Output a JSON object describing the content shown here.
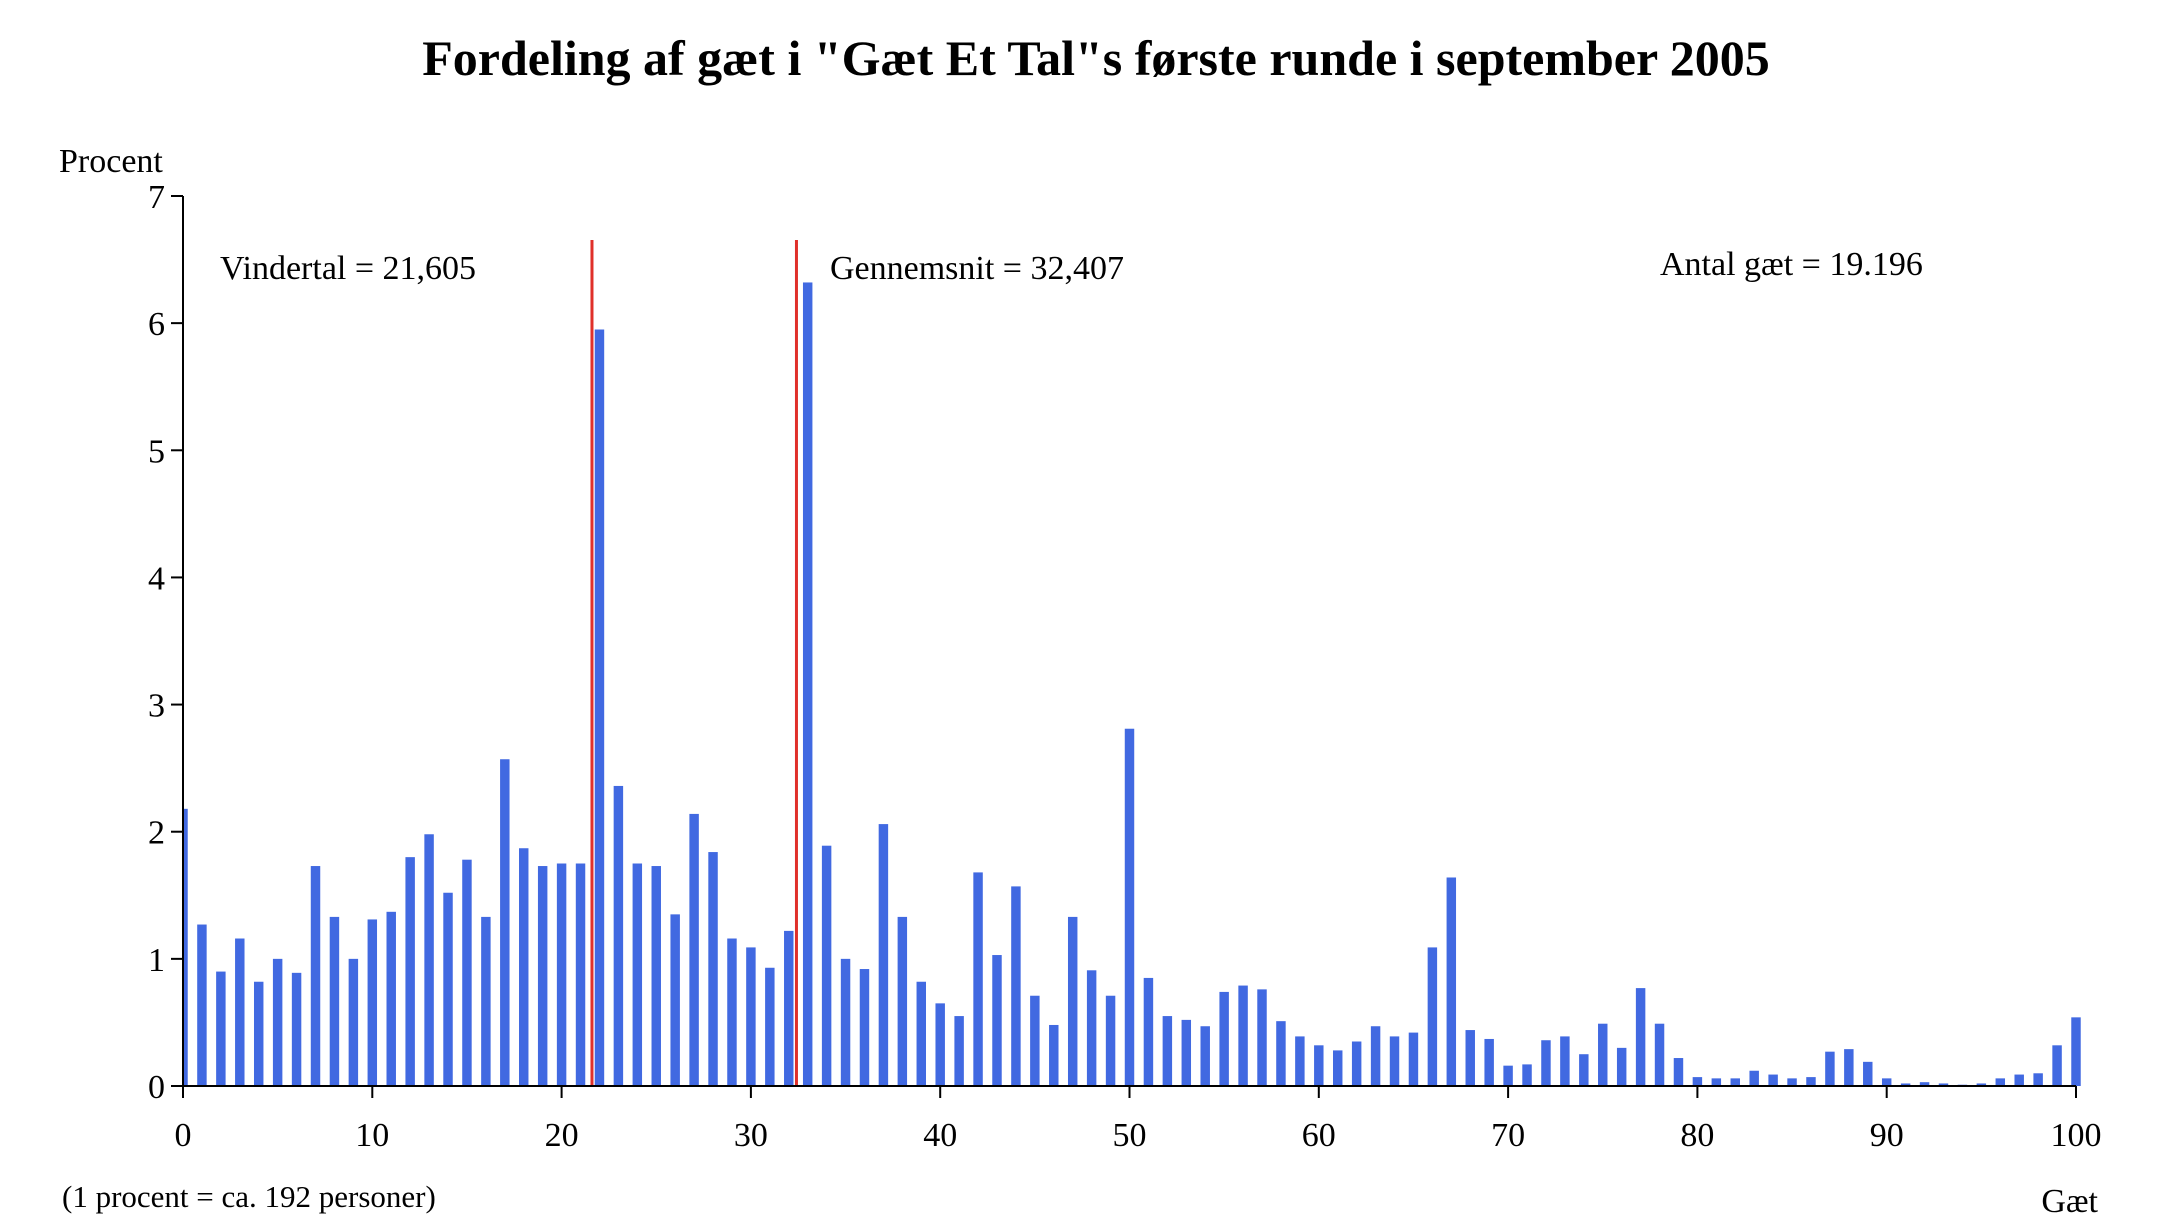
{
  "chart_data": {
    "type": "bar",
    "title": "Fordeling af gæt i \"Gæt Et Tal\"s første runde i september 2005",
    "ylabel": "Procent",
    "xlabel": "Gæt",
    "note": "(1 procent = ca. 192 personer)",
    "xlim": [
      0,
      100
    ],
    "ylim": [
      0,
      7
    ],
    "xticks": [
      0,
      10,
      20,
      30,
      40,
      50,
      60,
      70,
      80,
      90,
      100
    ],
    "yticks": [
      0,
      1,
      2,
      3,
      4,
      5,
      6,
      7
    ],
    "grid": false,
    "bar_color": "#4169E1",
    "reference_line_color": "#E0302A",
    "annotations": {
      "winner": {
        "text": "Vindertal = 21,605",
        "x": 21.605
      },
      "mean": {
        "text": "Gennemsnit = 32,407",
        "x": 32.407
      },
      "count": {
        "text": "Antal gæt = 19.196"
      }
    },
    "x": [
      0,
      1,
      2,
      3,
      4,
      5,
      6,
      7,
      8,
      9,
      10,
      11,
      12,
      13,
      14,
      15,
      16,
      17,
      18,
      19,
      20,
      21,
      22,
      23,
      24,
      25,
      26,
      27,
      28,
      29,
      30,
      31,
      32,
      33,
      34,
      35,
      36,
      37,
      38,
      39,
      40,
      41,
      42,
      43,
      44,
      45,
      46,
      47,
      48,
      49,
      50,
      51,
      52,
      53,
      54,
      55,
      56,
      57,
      58,
      59,
      60,
      61,
      62,
      63,
      64,
      65,
      66,
      67,
      68,
      69,
      70,
      71,
      72,
      73,
      74,
      75,
      76,
      77,
      78,
      79,
      80,
      81,
      82,
      83,
      84,
      85,
      86,
      87,
      88,
      89,
      90,
      91,
      92,
      93,
      94,
      95,
      96,
      97,
      98,
      99,
      100
    ],
    "values": [
      2.18,
      1.27,
      0.9,
      1.16,
      0.82,
      1.0,
      0.89,
      1.73,
      1.33,
      1.0,
      1.31,
      1.37,
      1.8,
      1.98,
      1.52,
      1.78,
      1.33,
      2.57,
      1.87,
      1.73,
      1.75,
      1.75,
      5.95,
      2.36,
      1.75,
      1.73,
      1.35,
      2.14,
      1.84,
      1.16,
      1.09,
      0.93,
      1.22,
      6.32,
      1.89,
      1.0,
      0.92,
      2.06,
      1.33,
      0.82,
      0.65,
      0.55,
      1.68,
      1.03,
      1.57,
      0.71,
      0.48,
      1.33,
      0.91,
      0.71,
      2.81,
      0.85,
      0.55,
      0.52,
      0.47,
      0.74,
      0.79,
      0.76,
      0.51,
      0.39,
      0.32,
      0.28,
      0.35,
      0.47,
      0.39,
      0.42,
      1.09,
      1.64,
      0.44,
      0.37,
      0.16,
      0.17,
      0.36,
      0.39,
      0.25,
      0.49,
      0.3,
      0.77,
      0.49,
      0.22,
      0.07,
      0.06,
      0.06,
      0.12,
      0.09,
      0.06,
      0.07,
      0.27,
      0.29,
      0.19,
      0.06,
      0.02,
      0.03,
      0.02,
      0.01,
      0.02,
      0.06,
      0.09,
      0.1,
      0.32,
      0.54
    ]
  }
}
